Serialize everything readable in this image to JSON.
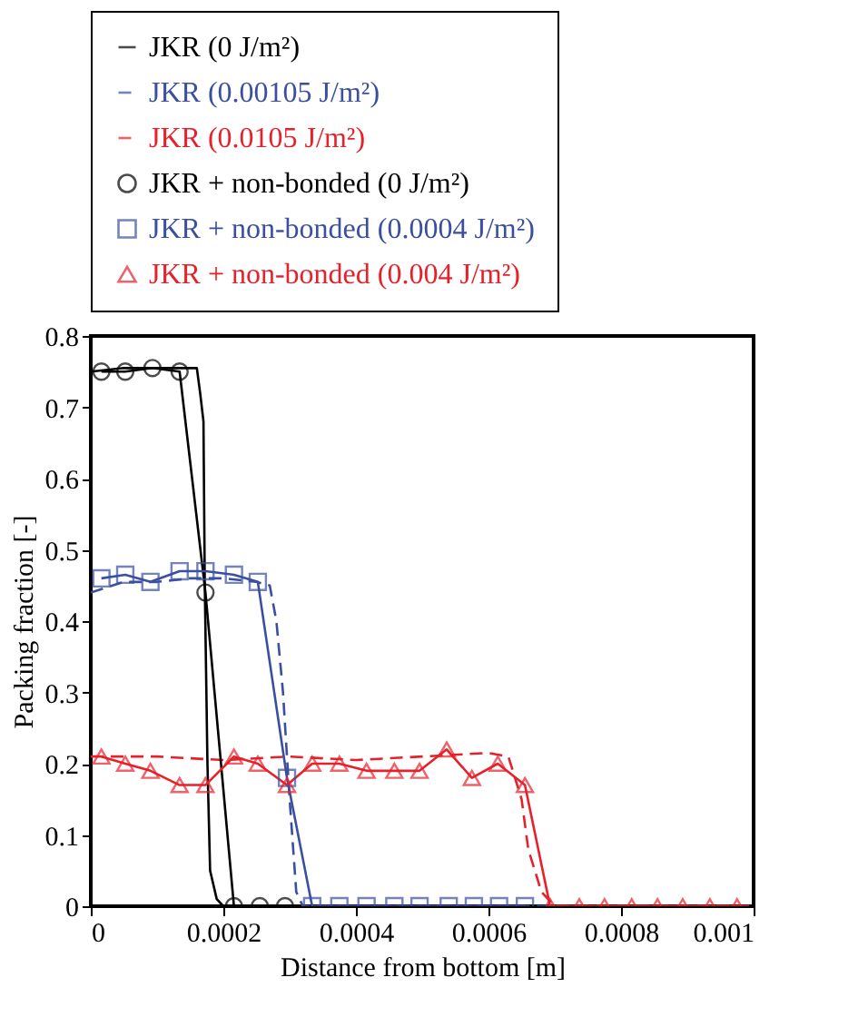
{
  "chart_data": {
    "type": "line",
    "xlabel": "Distance from bottom [m]",
    "ylabel": "Packing fraction [-]",
    "xlim": [
      0,
      0.001
    ],
    "xticks": [
      0,
      0.0002,
      0.0004,
      0.0006,
      0.0008,
      0.001
    ],
    "ylim": [
      0,
      0.8
    ],
    "yticks": [
      0,
      0.1,
      0.2,
      0.3,
      0.4,
      0.5,
      0.6,
      0.7,
      0.8
    ],
    "grid": false,
    "legend": "top",
    "series": [
      {
        "name": "JKR (0 J/m²)",
        "color": "#000000",
        "line_style": "solid",
        "marker": "none",
        "x": [
          0,
          5e-05,
          0.0001,
          0.00015,
          0.00016,
          0.000165,
          0.00017,
          0.000172,
          0.000176,
          0.00018,
          0.00019,
          0.0002,
          0.0005,
          0.001
        ],
        "values": [
          0.75,
          0.755,
          0.755,
          0.755,
          0.755,
          0.72,
          0.68,
          0.45,
          0.2,
          0.05,
          0.01,
          0,
          0,
          0
        ]
      },
      {
        "name": "JKR (0.00105 J/m²)",
        "color": "#3a4fa0",
        "line_style": "dashed",
        "marker": "none",
        "x": [
          0,
          5e-05,
          0.0001,
          0.00015,
          0.0002,
          0.00025,
          0.00027,
          0.00028,
          0.00029,
          0.0003,
          0.00031,
          0.00032,
          0.001
        ],
        "values": [
          0.44,
          0.455,
          0.455,
          0.46,
          0.46,
          0.455,
          0.45,
          0.4,
          0.3,
          0.15,
          0.02,
          0,
          0
        ]
      },
      {
        "name": "JKR (0.0105 J/m²)",
        "color": "#e8202a",
        "line_style": "dashed",
        "marker": "none",
        "x": [
          0,
          0.0001,
          0.0002,
          0.0003,
          0.0004,
          0.0005,
          0.0006,
          0.00063,
          0.00065,
          0.00066,
          0.00068,
          0.0007,
          0.001
        ],
        "values": [
          0.21,
          0.21,
          0.205,
          0.21,
          0.205,
          0.21,
          0.215,
          0.21,
          0.15,
          0.08,
          0.02,
          0,
          0
        ]
      },
      {
        "name": "JKR + non-bonded (0 J/m²)",
        "color": "#000000",
        "line_style": "solid",
        "marker": "circle",
        "x": [
          1.6e-05,
          5.2e-05,
          9.3e-05,
          0.000134,
          0.000173,
          0.000216,
          0.000255,
          0.000293
        ],
        "values": [
          0.75,
          0.75,
          0.755,
          0.75,
          0.44,
          0,
          0,
          0
        ]
      },
      {
        "name": "JKR + non-bonded (0.0004 J/m²)",
        "color": "#3a4fa0",
        "line_style": "solid",
        "marker": "square",
        "x": [
          1.6e-05,
          5.2e-05,
          9e-05,
          0.000134,
          0.000173,
          0.000216,
          0.000252,
          0.000296,
          0.000334,
          0.000375,
          0.000416,
          0.000458,
          0.000496,
          0.00054,
          0.000578,
          0.000616,
          0.000655
        ],
        "values": [
          0.46,
          0.465,
          0.455,
          0.47,
          0.47,
          0.465,
          0.455,
          0.18,
          0,
          0,
          0,
          0,
          0,
          0,
          0,
          0,
          0
        ]
      },
      {
        "name": "JKR + non-bonded (0.004 J/m²)",
        "color": "#e8202a",
        "line_style": "solid",
        "marker": "triangle",
        "x": [
          1.6e-05,
          5.2e-05,
          9e-05,
          0.000134,
          0.000173,
          0.000216,
          0.000252,
          0.000296,
          0.000334,
          0.000375,
          0.000416,
          0.000458,
          0.000496,
          0.000537,
          0.000575,
          0.000614,
          0.000655,
          0.000693,
          0.000737,
          0.000775,
          0.000816,
          0.000855,
          0.000893,
          0.000934,
          0.000975
        ],
        "values": [
          0.21,
          0.2,
          0.19,
          0.17,
          0.17,
          0.21,
          0.2,
          0.17,
          0.2,
          0.2,
          0.19,
          0.19,
          0.19,
          0.22,
          0.18,
          0.2,
          0.17,
          0,
          0,
          0,
          0,
          0,
          0,
          0,
          0
        ]
      }
    ]
  }
}
